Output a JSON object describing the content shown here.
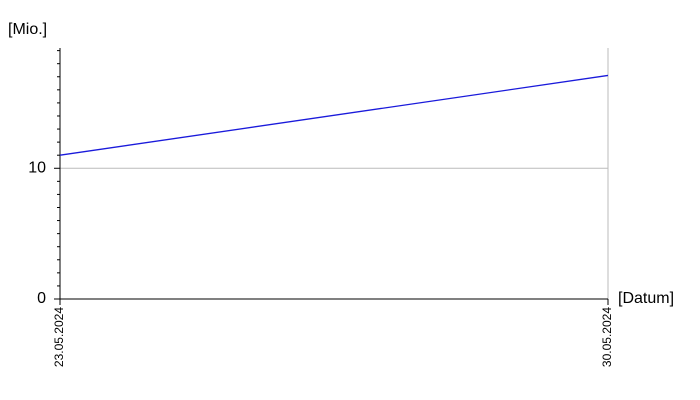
{
  "chart_data": {
    "type": "line",
    "y_label": "[Mio.]",
    "x_label": "[Datum]",
    "categories": [
      "23.05.2024",
      "30.05.2024"
    ],
    "values": [
      11.0,
      17.1
    ],
    "color": "#1a1adb",
    "ylim": [
      0,
      19.2
    ],
    "yticks": [
      0,
      10
    ],
    "y_minor_ticks": [
      1,
      2,
      3,
      4,
      5,
      6,
      7,
      8,
      9,
      11,
      12,
      13,
      14,
      15,
      16,
      17,
      18,
      19
    ],
    "grid": true
  }
}
